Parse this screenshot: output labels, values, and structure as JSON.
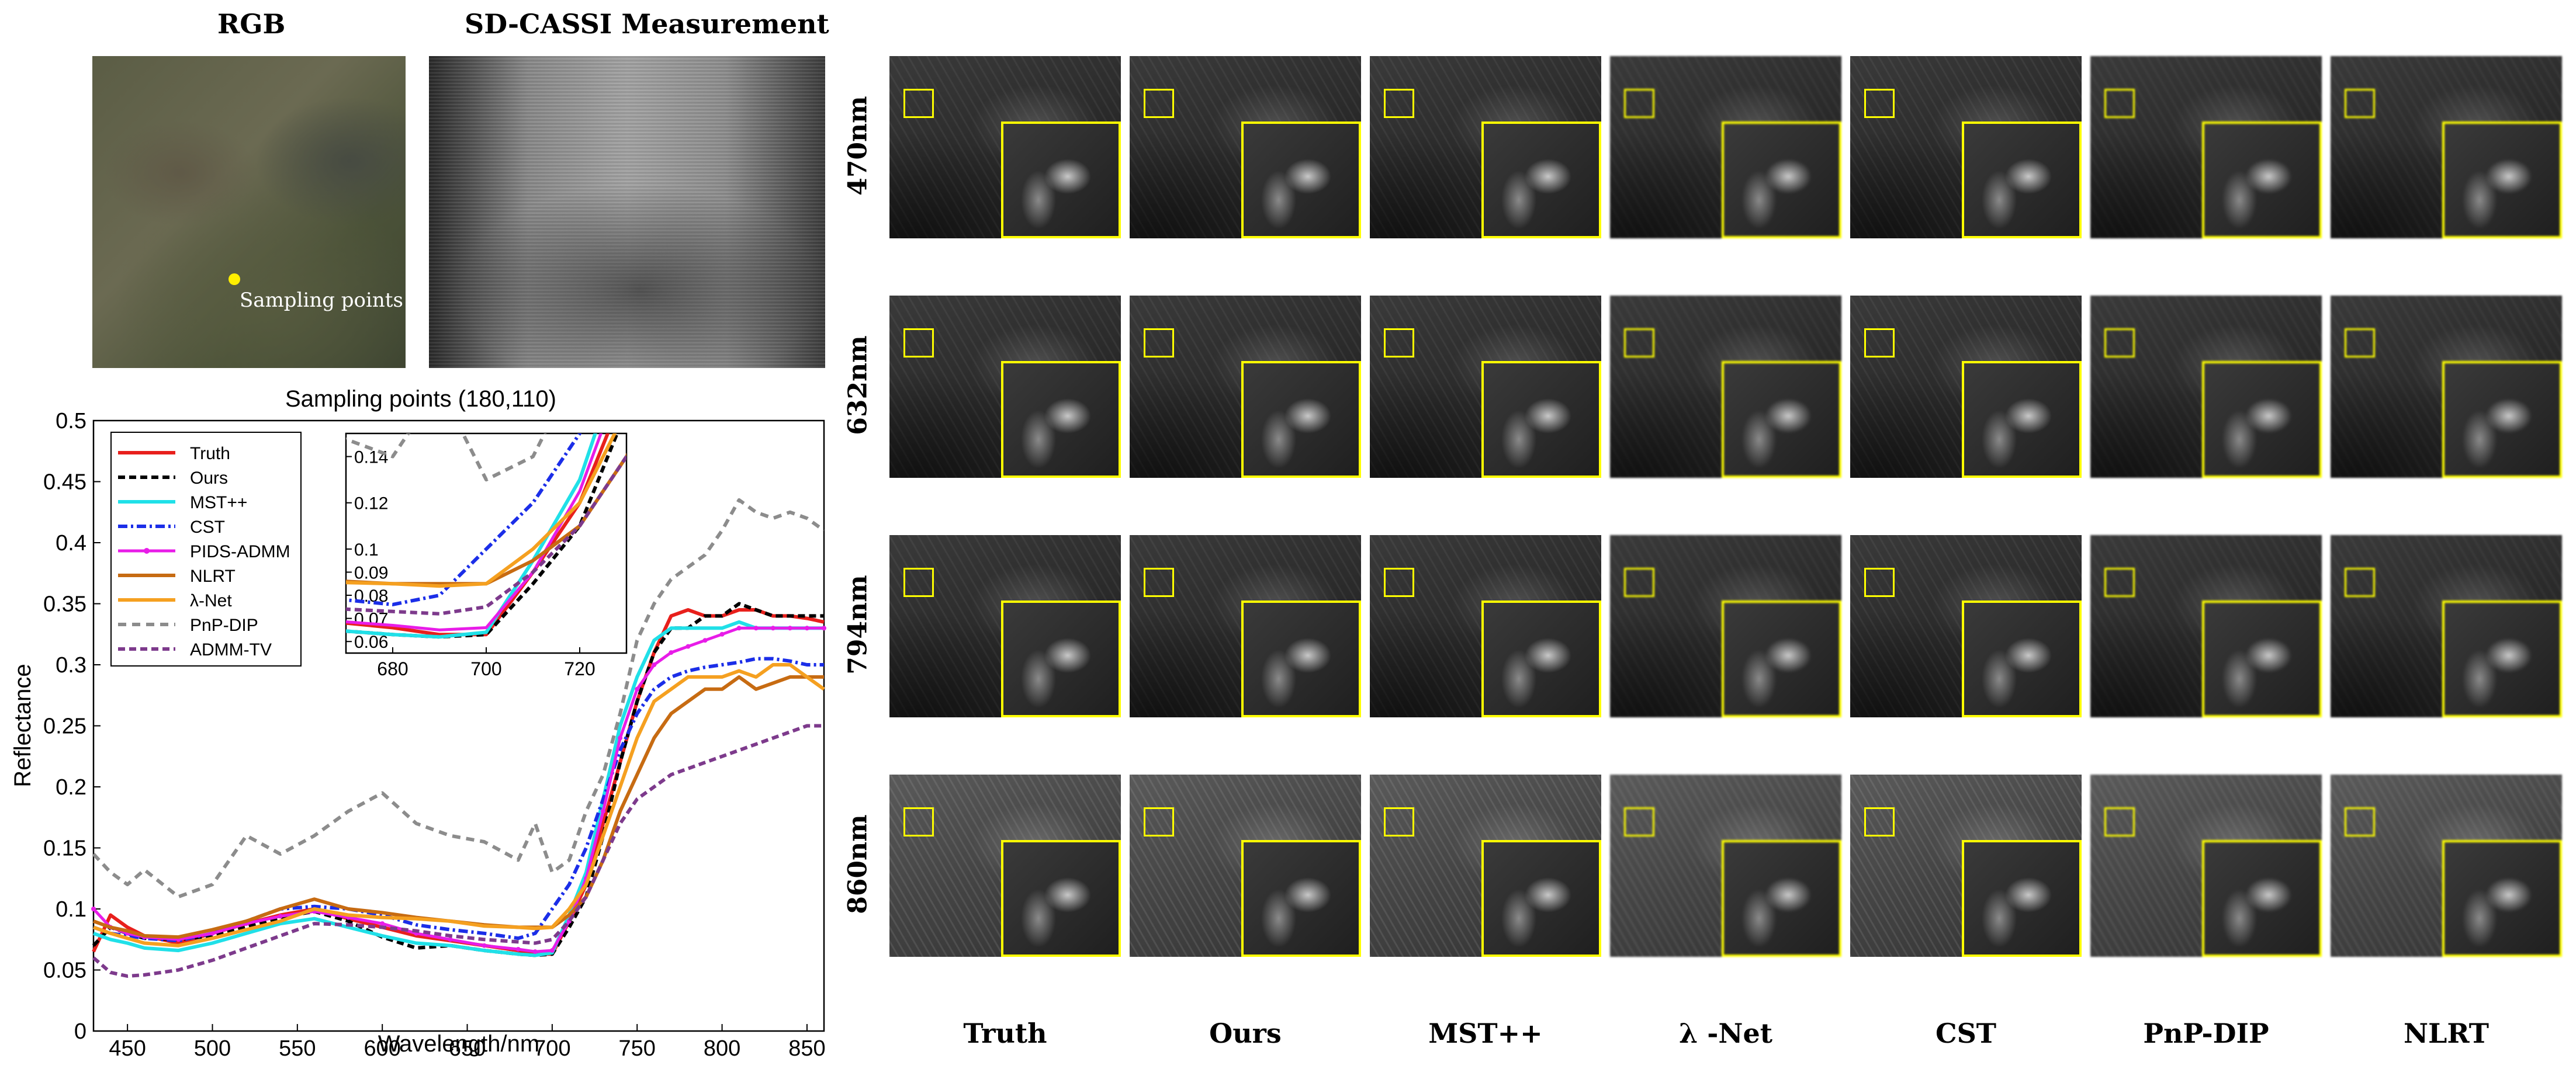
{
  "left_panel": {
    "rgb_title": "RGB",
    "measurement_title": "SD-CASSI Measurement",
    "sampling_label": "Sampling points"
  },
  "grid": {
    "row_labels": [
      "470nm",
      "632nm",
      "794nm",
      "860nm"
    ],
    "column_labels": [
      "Truth",
      "Ours",
      "MST++",
      "λ -Net",
      "CST",
      "PnP-DIP",
      "NLRT"
    ]
  },
  "colors": {
    "highlight": "#ffff00",
    "sampling_point": "#ffee00"
  },
  "chart_data": [
    {
      "type": "line",
      "title": "Sampling points (180,110)",
      "xlabel": "Wavelength/nm",
      "ylabel": "Reflectance",
      "xlim": [
        430,
        860
      ],
      "ylim": [
        0,
        0.5
      ],
      "xticks": [
        "450",
        "500",
        "550",
        "600",
        "650",
        "700",
        "750",
        "800",
        "850"
      ],
      "yticks": [
        "0",
        "0.05",
        "0.1",
        "0.15",
        "0.2",
        "0.25",
        "0.3",
        "0.35",
        "0.4",
        "0.45",
        "0.5"
      ],
      "x": [
        430,
        440,
        450,
        460,
        480,
        500,
        520,
        540,
        560,
        580,
        600,
        620,
        640,
        660,
        680,
        690,
        700,
        710,
        720,
        730,
        740,
        750,
        760,
        770,
        780,
        790,
        800,
        810,
        820,
        830,
        840,
        850,
        860
      ],
      "series": [
        {
          "name": "Truth",
          "color": "#e8201c",
          "dash": "solid",
          "width": 6,
          "values": [
            0.065,
            0.095,
            0.085,
            0.078,
            0.072,
            0.08,
            0.088,
            0.095,
            0.1,
            0.092,
            0.085,
            0.078,
            0.074,
            0.07,
            0.066,
            0.063,
            0.063,
            0.09,
            0.12,
            0.17,
            0.22,
            0.27,
            0.31,
            0.34,
            0.345,
            0.34,
            0.34,
            0.345,
            0.345,
            0.34,
            0.34,
            0.338,
            0.335
          ]
        },
        {
          "name": "Ours",
          "color": "#000000",
          "dash": "12,7",
          "width": 6,
          "values": [
            0.07,
            0.085,
            0.08,
            0.076,
            0.075,
            0.078,
            0.085,
            0.093,
            0.098,
            0.09,
            0.077,
            0.068,
            0.07,
            0.066,
            0.063,
            0.062,
            0.063,
            0.085,
            0.11,
            0.16,
            0.22,
            0.27,
            0.31,
            0.33,
            0.33,
            0.34,
            0.34,
            0.35,
            0.345,
            0.34,
            0.34,
            0.34,
            0.34
          ]
        },
        {
          "name": "MST++",
          "color": "#20e0e8",
          "dash": "solid",
          "width": 6,
          "values": [
            0.08,
            0.075,
            0.072,
            0.068,
            0.066,
            0.072,
            0.08,
            0.088,
            0.092,
            0.085,
            0.078,
            0.072,
            0.07,
            0.066,
            0.063,
            0.062,
            0.064,
            0.095,
            0.13,
            0.19,
            0.25,
            0.29,
            0.32,
            0.33,
            0.33,
            0.33,
            0.33,
            0.335,
            0.33,
            0.33,
            0.33,
            0.33,
            0.33
          ]
        },
        {
          "name": "CST",
          "color": "#1b2ee8",
          "dash": "16,6,4,6",
          "width": 6,
          "values": [
            0.085,
            0.08,
            0.078,
            0.076,
            0.074,
            0.08,
            0.09,
            0.1,
            0.102,
            0.1,
            0.095,
            0.087,
            0.083,
            0.08,
            0.076,
            0.08,
            0.1,
            0.12,
            0.15,
            0.19,
            0.23,
            0.26,
            0.28,
            0.29,
            0.295,
            0.298,
            0.3,
            0.302,
            0.305,
            0.305,
            0.303,
            0.3,
            0.3
          ]
        },
        {
          "name": "PIDS-ADMM",
          "color": "#e81ce8",
          "dash": "solid",
          "width": 5,
          "markers": true,
          "values": [
            0.1,
            0.085,
            0.08,
            0.077,
            0.075,
            0.08,
            0.088,
            0.094,
            0.098,
            0.093,
            0.088,
            0.08,
            0.075,
            0.07,
            0.067,
            0.065,
            0.066,
            0.09,
            0.125,
            0.18,
            0.24,
            0.28,
            0.3,
            0.31,
            0.315,
            0.32,
            0.325,
            0.33,
            0.33,
            0.33,
            0.33,
            0.33,
            0.33
          ]
        },
        {
          "name": "NLRT",
          "color": "#c76b12",
          "dash": "solid",
          "width": 6,
          "values": [
            0.09,
            0.085,
            0.082,
            0.078,
            0.077,
            0.083,
            0.09,
            0.1,
            0.108,
            0.1,
            0.097,
            0.093,
            0.09,
            0.087,
            0.085,
            0.085,
            0.085,
            0.095,
            0.11,
            0.14,
            0.18,
            0.21,
            0.24,
            0.26,
            0.27,
            0.28,
            0.28,
            0.29,
            0.28,
            0.285,
            0.29,
            0.29,
            0.29
          ]
        },
        {
          "name": "λ-Net",
          "color": "#f5a020",
          "dash": "solid",
          "width": 6,
          "values": [
            0.085,
            0.08,
            0.076,
            0.072,
            0.07,
            0.076,
            0.083,
            0.09,
            0.1,
            0.095,
            0.093,
            0.092,
            0.09,
            0.086,
            0.085,
            0.084,
            0.085,
            0.1,
            0.12,
            0.16,
            0.2,
            0.24,
            0.27,
            0.28,
            0.29,
            0.29,
            0.29,
            0.295,
            0.29,
            0.3,
            0.3,
            0.29,
            0.28
          ]
        },
        {
          "name": "PnP-DIP",
          "color": "#8c8c8c",
          "dash": "14,10",
          "width": 6,
          "values": [
            0.145,
            0.13,
            0.12,
            0.132,
            0.11,
            0.12,
            0.16,
            0.145,
            0.16,
            0.18,
            0.195,
            0.17,
            0.16,
            0.155,
            0.14,
            0.17,
            0.13,
            0.14,
            0.18,
            0.21,
            0.26,
            0.32,
            0.35,
            0.37,
            0.38,
            0.39,
            0.41,
            0.435,
            0.425,
            0.42,
            0.425,
            0.42,
            0.41
          ]
        },
        {
          "name": "ADMM-TV",
          "color": "#7d3a8c",
          "dash": "12,7",
          "width": 6,
          "values": [
            0.06,
            0.048,
            0.045,
            0.046,
            0.05,
            0.058,
            0.068,
            0.078,
            0.088,
            0.087,
            0.085,
            0.082,
            0.078,
            0.075,
            0.073,
            0.072,
            0.075,
            0.09,
            0.11,
            0.14,
            0.17,
            0.19,
            0.2,
            0.21,
            0.215,
            0.22,
            0.225,
            0.23,
            0.235,
            0.24,
            0.245,
            0.25,
            0.25
          ]
        }
      ]
    },
    {
      "type": "line",
      "title": "",
      "xlim": [
        670,
        730
      ],
      "ylim": [
        0.055,
        0.15
      ],
      "xticks": [
        "680",
        "700",
        "720"
      ],
      "yticks": [
        "0.06",
        "0.07",
        "0.08",
        "0.09",
        "0.1",
        "0.12",
        "0.14"
      ]
    }
  ]
}
